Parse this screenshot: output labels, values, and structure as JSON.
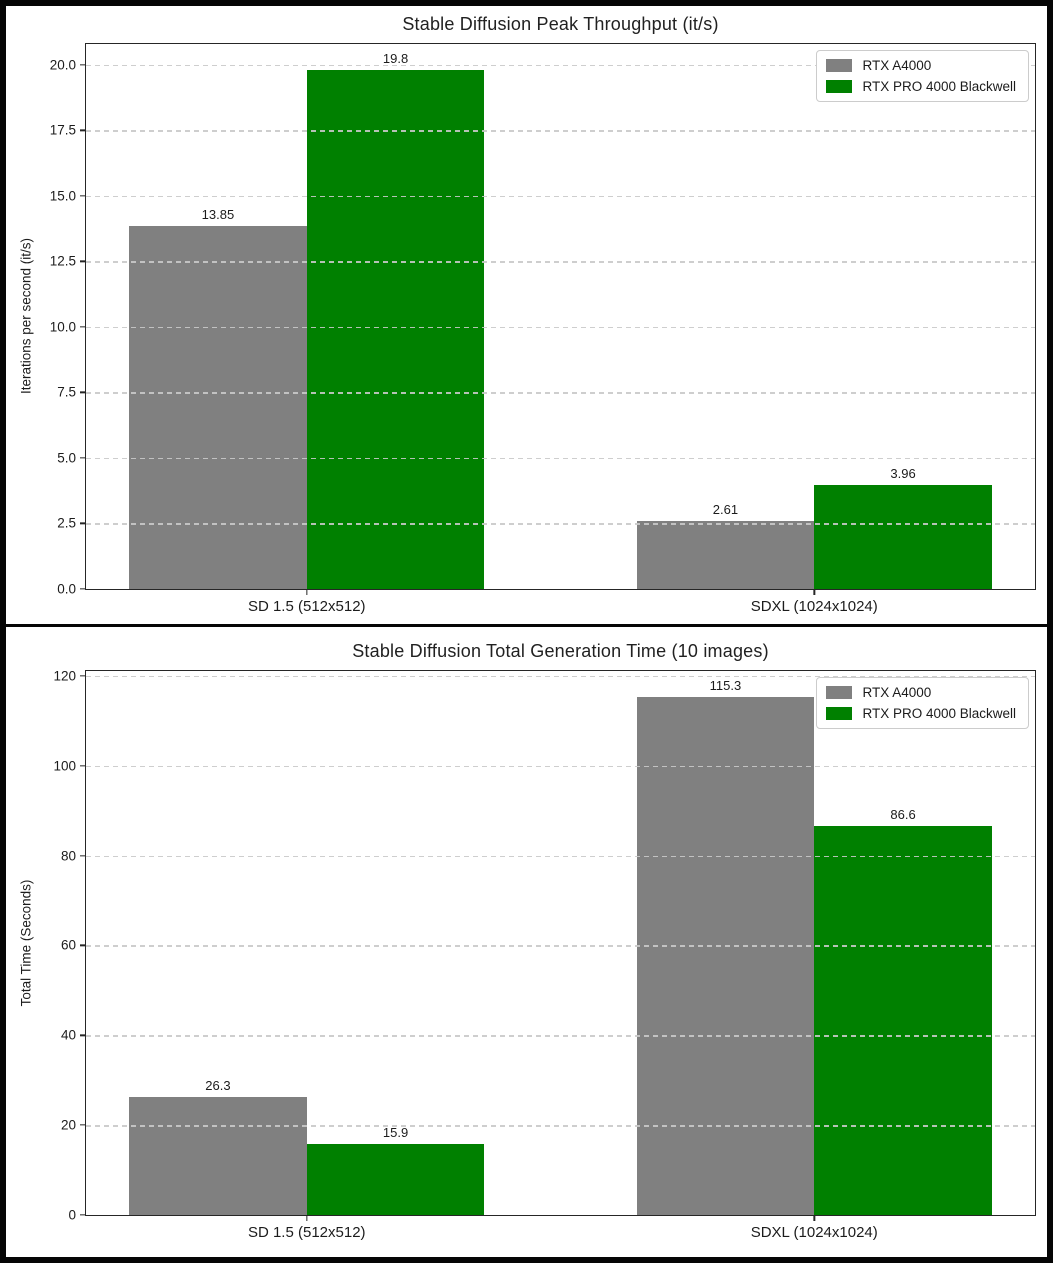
{
  "page": {
    "background": "#ffffff",
    "outer_border_color": "#050505"
  },
  "style": {
    "grid_color": "#c9c9c9",
    "text_color": "#1c1c1c",
    "spine_color": "#262626",
    "legend_border_color": "#cccccc",
    "bar_gray": "#808080",
    "bar_green": "#008000"
  },
  "chart_data": [
    {
      "type": "bar",
      "title": "Stable Diffusion Peak Throughput (it/s)",
      "ylabel": "Iterations per second (it/s)",
      "xlabel": "",
      "categories": [
        "SD 1.5 (512x512)",
        "SDXL (1024x1024)"
      ],
      "series": [
        {
          "name": "RTX A4000",
          "color": "#808080",
          "values": [
            13.85,
            2.61
          ],
          "value_labels": [
            "13.85",
            "2.61"
          ]
        },
        {
          "name": "RTX PRO 4000 Blackwell",
          "color": "#008000",
          "values": [
            19.8,
            3.96
          ],
          "value_labels": [
            "19.8",
            "3.96"
          ]
        }
      ],
      "ylim": [
        0,
        20.79
      ],
      "yticks": [
        0,
        2.5,
        5,
        7.5,
        10,
        12.5,
        15,
        17.5,
        20
      ],
      "ytick_labels": [
        "0.0",
        "2.5",
        "5.0",
        "7.5",
        "10.0",
        "12.5",
        "15.0",
        "17.5",
        "20.0"
      ],
      "grid": "horizontal-dashed",
      "legend_position": "upper-right",
      "legend_entries": [
        "RTX A4000",
        "RTX PRO 4000 Blackwell"
      ],
      "bar_width": 0.35
    },
    {
      "type": "bar",
      "title": "Stable Diffusion Total Generation Time (10 images)",
      "ylabel": "Total Time (Seconds)",
      "xlabel": "",
      "categories": [
        "SD 1.5 (512x512)",
        "SDXL (1024x1024)"
      ],
      "series": [
        {
          "name": "RTX A4000",
          "color": "#808080",
          "values": [
            26.3,
            115.3
          ],
          "value_labels": [
            "26.3",
            "115.3"
          ]
        },
        {
          "name": "RTX PRO 4000 Blackwell",
          "color": "#008000",
          "values": [
            15.9,
            86.6
          ],
          "value_labels": [
            "15.9",
            "86.6"
          ]
        }
      ],
      "ylim": [
        0,
        121.1
      ],
      "yticks": [
        0,
        20,
        40,
        60,
        80,
        100,
        120
      ],
      "ytick_labels": [
        "0",
        "20",
        "40",
        "60",
        "80",
        "100",
        "120"
      ],
      "grid": "horizontal-dashed",
      "legend_position": "upper-right",
      "legend_entries": [
        "RTX A4000",
        "RTX PRO 4000 Blackwell"
      ],
      "bar_width": 0.35
    }
  ]
}
